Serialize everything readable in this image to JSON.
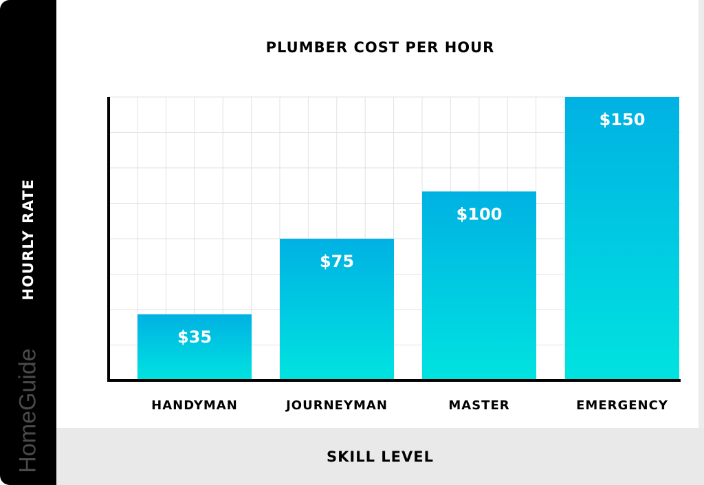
{
  "brand": "HomeGuide",
  "chart_data": {
    "type": "bar",
    "title": "PLUMBER COST PER HOUR",
    "xlabel": "SKILL LEVEL",
    "ylabel": "HOURLY RATE",
    "categories": [
      "HANDYMAN",
      "JOURNEYMAN",
      "MASTER",
      "EMERGENCY"
    ],
    "values": [
      35,
      75,
      100,
      150
    ],
    "data_labels": [
      "$35",
      "$75",
      "$100",
      "$150"
    ],
    "ylim": [
      0,
      150
    ],
    "grid": true,
    "bar_gradient": [
      "#00b1e3",
      "#00e3e0"
    ]
  }
}
